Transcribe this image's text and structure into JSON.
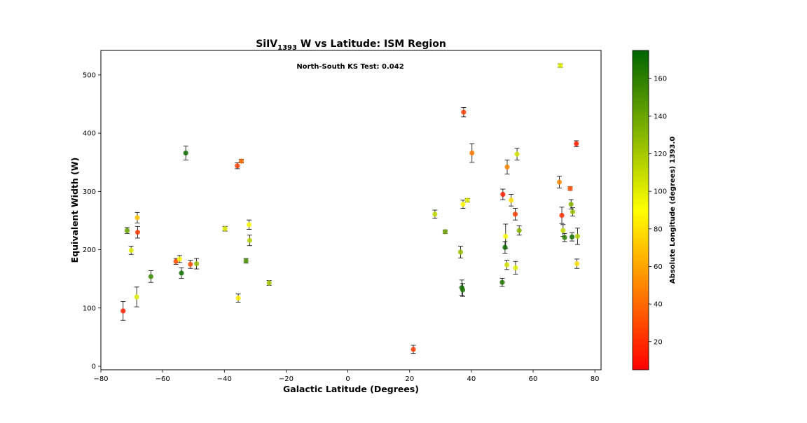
{
  "chart_data": {
    "type": "scatter",
    "title_main": "SiIV",
    "title_sub": "1393",
    "title_rest": " W vs Latitude: ISM Region",
    "xlabel": "Galactic Latitude (Degrees)",
    "ylabel": "Equivalent Width (W)",
    "annotation": "North-South KS Test: 0.042",
    "xlim": [
      -80,
      82
    ],
    "ylim": [
      -6,
      542
    ],
    "xticks": [
      -80,
      -60,
      -40,
      -20,
      0,
      20,
      40,
      60,
      80
    ],
    "yticks": [
      0,
      100,
      200,
      300,
      400,
      500
    ],
    "grid": false,
    "colorbar": {
      "label": "Absolute Longitude (degrees) 1393.0",
      "range": [
        5,
        175
      ],
      "ticks": [
        20,
        40,
        60,
        80,
        100,
        120,
        140,
        160
      ],
      "colors": [
        "#ff0000",
        "#ffff00",
        "#006400"
      ]
    },
    "points": [
      {
        "x": -72.8,
        "y": 95,
        "err": 16,
        "c": 15
      },
      {
        "x": -71.5,
        "y": 233,
        "err": 5,
        "c": 140
      },
      {
        "x": -70.2,
        "y": 199,
        "err": 7,
        "c": 100
      },
      {
        "x": -68.4,
        "y": 119,
        "err": 17,
        "c": 100
      },
      {
        "x": -68.2,
        "y": 255,
        "err": 9,
        "c": 70
      },
      {
        "x": -68.1,
        "y": 230,
        "err": 10,
        "c": 25
      },
      {
        "x": -63.8,
        "y": 154,
        "err": 10,
        "c": 155
      },
      {
        "x": -55.7,
        "y": 180,
        "err": 5,
        "c": 30
      },
      {
        "x": -54.5,
        "y": 184,
        "err": 6,
        "c": 85
      },
      {
        "x": -53.9,
        "y": 160,
        "err": 9,
        "c": 170
      },
      {
        "x": -52.5,
        "y": 366,
        "err": 12,
        "c": 170
      },
      {
        "x": -51.0,
        "y": 175,
        "err": 7,
        "c": 30
      },
      {
        "x": -49.0,
        "y": 176,
        "err": 9,
        "c": 125
      },
      {
        "x": -39.8,
        "y": 236,
        "err": 4,
        "c": 100
      },
      {
        "x": -35.8,
        "y": 344,
        "err": 5,
        "c": 25
      },
      {
        "x": -35.5,
        "y": 117,
        "err": 7,
        "c": 85
      },
      {
        "x": -34.5,
        "y": 352,
        "err": 3,
        "c": 40
      },
      {
        "x": -33.0,
        "y": 181,
        "err": 4,
        "c": 150
      },
      {
        "x": -32.0,
        "y": 243,
        "err": 8,
        "c": 90
      },
      {
        "x": -31.8,
        "y": 216,
        "err": 9,
        "c": 115
      },
      {
        "x": -25.5,
        "y": 143,
        "err": 4,
        "c": 120
      },
      {
        "x": 21.2,
        "y": 29,
        "err": 7,
        "c": 25
      },
      {
        "x": 28.2,
        "y": 261,
        "err": 7,
        "c": 110
      },
      {
        "x": 31.5,
        "y": 231,
        "err": 3,
        "c": 140
      },
      {
        "x": 36.5,
        "y": 196,
        "err": 10,
        "c": 125
      },
      {
        "x": 36.9,
        "y": 135,
        "err": 13,
        "c": 170
      },
      {
        "x": 37.2,
        "y": 131,
        "err": 11,
        "c": 165
      },
      {
        "x": 37.3,
        "y": 278,
        "err": 7,
        "c": 90
      },
      {
        "x": 37.5,
        "y": 436,
        "err": 8,
        "c": 25
      },
      {
        "x": 38.7,
        "y": 285,
        "err": 3,
        "c": 100
      },
      {
        "x": 40.2,
        "y": 366,
        "err": 16,
        "c": 45
      },
      {
        "x": 50.0,
        "y": 144,
        "err": 7,
        "c": 165
      },
      {
        "x": 50.2,
        "y": 295,
        "err": 9,
        "c": 15
      },
      {
        "x": 50.9,
        "y": 204,
        "err": 10,
        "c": 170
      },
      {
        "x": 51.1,
        "y": 223,
        "err": 21,
        "c": 90
      },
      {
        "x": 51.5,
        "y": 174,
        "err": 8,
        "c": 105
      },
      {
        "x": 51.6,
        "y": 342,
        "err": 12,
        "c": 50
      },
      {
        "x": 52.9,
        "y": 285,
        "err": 10,
        "c": 80
      },
      {
        "x": 54.2,
        "y": 261,
        "err": 10,
        "c": 25
      },
      {
        "x": 54.3,
        "y": 169,
        "err": 11,
        "c": 100
      },
      {
        "x": 54.8,
        "y": 364,
        "err": 10,
        "c": 105
      },
      {
        "x": 55.5,
        "y": 233,
        "err": 8,
        "c": 130
      },
      {
        "x": 68.5,
        "y": 316,
        "err": 10,
        "c": 50
      },
      {
        "x": 68.8,
        "y": 516,
        "err": 3,
        "c": 100
      },
      {
        "x": 69.3,
        "y": 259,
        "err": 14,
        "c": 20
      },
      {
        "x": 69.7,
        "y": 233,
        "err": 10,
        "c": 110
      },
      {
        "x": 70.2,
        "y": 221,
        "err": 7,
        "c": 160
      },
      {
        "x": 72.0,
        "y": 305,
        "err": 3,
        "c": 30
      },
      {
        "x": 72.3,
        "y": 278,
        "err": 8,
        "c": 130
      },
      {
        "x": 72.6,
        "y": 222,
        "err": 7,
        "c": 170
      },
      {
        "x": 72.8,
        "y": 265,
        "err": 7,
        "c": 125
      },
      {
        "x": 74.0,
        "y": 382,
        "err": 5,
        "c": 15
      },
      {
        "x": 74.2,
        "y": 176,
        "err": 8,
        "c": 80
      },
      {
        "x": 74.4,
        "y": 223,
        "err": 14,
        "c": 115
      }
    ]
  }
}
